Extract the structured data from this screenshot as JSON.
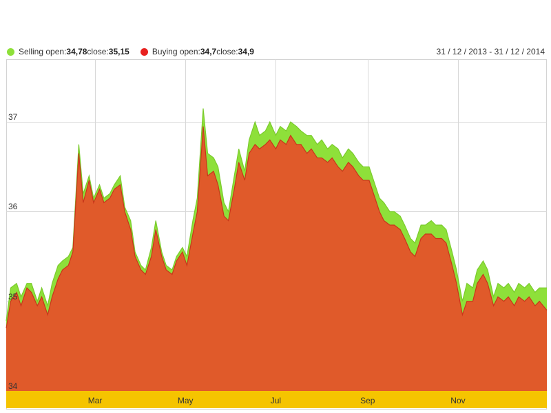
{
  "legend": {
    "selling": {
      "label": "Selling open:",
      "open": "34,78",
      "close_label": " close:",
      "close": "35,15"
    },
    "buying": {
      "label": "Buying open:",
      "open": "34,7",
      "close_label": " close:",
      "close": "34,9"
    }
  },
  "date_range": "31 / 12 / 2013 - 31 / 12 / 2014",
  "colors": {
    "selling": "#8ee03a",
    "buying": "#e05a2a",
    "buying_dot": "#e8211f",
    "axis_band": "#f5c400",
    "grid": "#d8d8d8"
  },
  "chart_data": {
    "type": "area",
    "title": "",
    "xlabel": "",
    "ylabel": "",
    "x_range": [
      "2013-12-31",
      "2014-12-31"
    ],
    "ylim": [
      34,
      37.7
    ],
    "grid": true,
    "legend_position": "top-left",
    "y_ticks": [
      {
        "value": 34,
        "label": "34"
      },
      {
        "value": 35,
        "label": "35"
      },
      {
        "value": 36,
        "label": "36"
      },
      {
        "value": 37,
        "label": "37"
      }
    ],
    "x_ticks": [
      {
        "date": "2014-03-01",
        "label": "Mar"
      },
      {
        "date": "2014-05-01",
        "label": "May"
      },
      {
        "date": "2014-07-01",
        "label": "Jul"
      },
      {
        "date": "2014-09-01",
        "label": "Sep"
      },
      {
        "date": "2014-11-01",
        "label": "Nov"
      }
    ],
    "series": [
      {
        "name": "Selling",
        "color": "#8ee03a",
        "points": [
          [
            "2013-12-31",
            34.78
          ],
          [
            "2014-01-03",
            35.15
          ],
          [
            "2014-01-07",
            35.2
          ],
          [
            "2014-01-10",
            35.05
          ],
          [
            "2014-01-14",
            35.2
          ],
          [
            "2014-01-17",
            35.2
          ],
          [
            "2014-01-21",
            35.0
          ],
          [
            "2014-01-24",
            35.15
          ],
          [
            "2014-01-28",
            34.95
          ],
          [
            "2014-01-31",
            35.2
          ],
          [
            "2014-02-04",
            35.4
          ],
          [
            "2014-02-07",
            35.45
          ],
          [
            "2014-02-11",
            35.5
          ],
          [
            "2014-02-14",
            35.6
          ],
          [
            "2014-02-18",
            36.75
          ],
          [
            "2014-02-21",
            36.2
          ],
          [
            "2014-02-25",
            36.4
          ],
          [
            "2014-02-28",
            36.15
          ],
          [
            "2014-03-04",
            36.3
          ],
          [
            "2014-03-07",
            36.15
          ],
          [
            "2014-03-11",
            36.2
          ],
          [
            "2014-03-14",
            36.3
          ],
          [
            "2014-03-18",
            36.4
          ],
          [
            "2014-03-21",
            36.05
          ],
          [
            "2014-03-25",
            35.9
          ],
          [
            "2014-03-28",
            35.55
          ],
          [
            "2014-04-01",
            35.4
          ],
          [
            "2014-04-04",
            35.35
          ],
          [
            "2014-04-08",
            35.6
          ],
          [
            "2014-04-11",
            35.9
          ],
          [
            "2014-04-15",
            35.55
          ],
          [
            "2014-04-18",
            35.4
          ],
          [
            "2014-04-22",
            35.35
          ],
          [
            "2014-04-25",
            35.5
          ],
          [
            "2014-04-29",
            35.6
          ],
          [
            "2014-05-02",
            35.5
          ],
          [
            "2014-05-06",
            35.9
          ],
          [
            "2014-05-09",
            36.15
          ],
          [
            "2014-05-13",
            37.15
          ],
          [
            "2014-05-16",
            36.65
          ],
          [
            "2014-05-20",
            36.6
          ],
          [
            "2014-05-23",
            36.5
          ],
          [
            "2014-05-27",
            36.1
          ],
          [
            "2014-05-30",
            36.0
          ],
          [
            "2014-06-03",
            36.4
          ],
          [
            "2014-06-06",
            36.7
          ],
          [
            "2014-06-10",
            36.45
          ],
          [
            "2014-06-13",
            36.8
          ],
          [
            "2014-06-17",
            37.0
          ],
          [
            "2014-06-20",
            36.85
          ],
          [
            "2014-06-24",
            36.9
          ],
          [
            "2014-06-27",
            37.0
          ],
          [
            "2014-07-01",
            36.85
          ],
          [
            "2014-07-04",
            36.95
          ],
          [
            "2014-07-08",
            36.9
          ],
          [
            "2014-07-11",
            37.0
          ],
          [
            "2014-07-15",
            36.95
          ],
          [
            "2014-07-18",
            36.9
          ],
          [
            "2014-07-22",
            36.85
          ],
          [
            "2014-07-25",
            36.85
          ],
          [
            "2014-07-29",
            36.75
          ],
          [
            "2014-08-01",
            36.8
          ],
          [
            "2014-08-05",
            36.7
          ],
          [
            "2014-08-08",
            36.75
          ],
          [
            "2014-08-12",
            36.7
          ],
          [
            "2014-08-15",
            36.6
          ],
          [
            "2014-08-19",
            36.7
          ],
          [
            "2014-08-22",
            36.65
          ],
          [
            "2014-08-26",
            36.55
          ],
          [
            "2014-08-29",
            36.5
          ],
          [
            "2014-09-02",
            36.5
          ],
          [
            "2014-09-05",
            36.35
          ],
          [
            "2014-09-09",
            36.15
          ],
          [
            "2014-09-12",
            36.1
          ],
          [
            "2014-09-16",
            36.0
          ],
          [
            "2014-09-19",
            36.0
          ],
          [
            "2014-09-23",
            35.95
          ],
          [
            "2014-09-26",
            35.85
          ],
          [
            "2014-09-30",
            35.7
          ],
          [
            "2014-10-03",
            35.65
          ],
          [
            "2014-10-07",
            35.85
          ],
          [
            "2014-10-10",
            35.85
          ],
          [
            "2014-10-14",
            35.9
          ],
          [
            "2014-10-17",
            35.85
          ],
          [
            "2014-10-21",
            35.85
          ],
          [
            "2014-10-24",
            35.8
          ],
          [
            "2014-10-28",
            35.55
          ],
          [
            "2014-10-31",
            35.35
          ],
          [
            "2014-11-04",
            35.0
          ],
          [
            "2014-11-07",
            35.2
          ],
          [
            "2014-11-11",
            35.15
          ],
          [
            "2014-11-14",
            35.35
          ],
          [
            "2014-11-18",
            35.45
          ],
          [
            "2014-11-21",
            35.35
          ],
          [
            "2014-11-25",
            35.05
          ],
          [
            "2014-11-28",
            35.2
          ],
          [
            "2014-12-02",
            35.15
          ],
          [
            "2014-12-05",
            35.2
          ],
          [
            "2014-12-09",
            35.1
          ],
          [
            "2014-12-12",
            35.2
          ],
          [
            "2014-12-16",
            35.15
          ],
          [
            "2014-12-19",
            35.2
          ],
          [
            "2014-12-23",
            35.1
          ],
          [
            "2014-12-26",
            35.15
          ],
          [
            "2014-12-31",
            35.15
          ]
        ]
      },
      {
        "name": "Buying",
        "color": "#e05a2a",
        "points": [
          [
            "2013-12-31",
            34.7
          ],
          [
            "2014-01-03",
            35.0
          ],
          [
            "2014-01-07",
            35.1
          ],
          [
            "2014-01-10",
            34.95
          ],
          [
            "2014-01-14",
            35.15
          ],
          [
            "2014-01-17",
            35.1
          ],
          [
            "2014-01-21",
            34.95
          ],
          [
            "2014-01-24",
            35.05
          ],
          [
            "2014-01-28",
            34.85
          ],
          [
            "2014-01-31",
            35.05
          ],
          [
            "2014-02-04",
            35.25
          ],
          [
            "2014-02-07",
            35.35
          ],
          [
            "2014-02-11",
            35.4
          ],
          [
            "2014-02-14",
            35.55
          ],
          [
            "2014-02-18",
            36.65
          ],
          [
            "2014-02-21",
            36.1
          ],
          [
            "2014-02-25",
            36.35
          ],
          [
            "2014-02-28",
            36.1
          ],
          [
            "2014-03-04",
            36.25
          ],
          [
            "2014-03-07",
            36.1
          ],
          [
            "2014-03-11",
            36.15
          ],
          [
            "2014-03-14",
            36.25
          ],
          [
            "2014-03-18",
            36.3
          ],
          [
            "2014-03-21",
            36.0
          ],
          [
            "2014-03-25",
            35.8
          ],
          [
            "2014-03-28",
            35.5
          ],
          [
            "2014-04-01",
            35.35
          ],
          [
            "2014-04-04",
            35.3
          ],
          [
            "2014-04-08",
            35.5
          ],
          [
            "2014-04-11",
            35.8
          ],
          [
            "2014-04-15",
            35.5
          ],
          [
            "2014-04-18",
            35.35
          ],
          [
            "2014-04-22",
            35.3
          ],
          [
            "2014-04-25",
            35.45
          ],
          [
            "2014-04-29",
            35.55
          ],
          [
            "2014-05-02",
            35.4
          ],
          [
            "2014-05-06",
            35.75
          ],
          [
            "2014-05-09",
            36.0
          ],
          [
            "2014-05-13",
            36.95
          ],
          [
            "2014-05-16",
            36.4
          ],
          [
            "2014-05-20",
            36.45
          ],
          [
            "2014-05-23",
            36.3
          ],
          [
            "2014-05-27",
            35.95
          ],
          [
            "2014-05-30",
            35.9
          ],
          [
            "2014-06-03",
            36.25
          ],
          [
            "2014-06-06",
            36.55
          ],
          [
            "2014-06-10",
            36.35
          ],
          [
            "2014-06-13",
            36.65
          ],
          [
            "2014-06-17",
            36.75
          ],
          [
            "2014-06-20",
            36.7
          ],
          [
            "2014-06-24",
            36.75
          ],
          [
            "2014-06-27",
            36.8
          ],
          [
            "2014-07-01",
            36.7
          ],
          [
            "2014-07-04",
            36.8
          ],
          [
            "2014-07-08",
            36.75
          ],
          [
            "2014-07-11",
            36.85
          ],
          [
            "2014-07-15",
            36.75
          ],
          [
            "2014-07-18",
            36.75
          ],
          [
            "2014-07-22",
            36.65
          ],
          [
            "2014-07-25",
            36.7
          ],
          [
            "2014-07-29",
            36.6
          ],
          [
            "2014-08-01",
            36.6
          ],
          [
            "2014-08-05",
            36.55
          ],
          [
            "2014-08-08",
            36.6
          ],
          [
            "2014-08-12",
            36.5
          ],
          [
            "2014-08-15",
            36.45
          ],
          [
            "2014-08-19",
            36.55
          ],
          [
            "2014-08-22",
            36.5
          ],
          [
            "2014-08-26",
            36.4
          ],
          [
            "2014-08-29",
            36.35
          ],
          [
            "2014-09-02",
            36.35
          ],
          [
            "2014-09-05",
            36.2
          ],
          [
            "2014-09-09",
            36.0
          ],
          [
            "2014-09-12",
            35.9
          ],
          [
            "2014-09-16",
            35.85
          ],
          [
            "2014-09-19",
            35.85
          ],
          [
            "2014-09-23",
            35.8
          ],
          [
            "2014-09-26",
            35.7
          ],
          [
            "2014-09-30",
            35.55
          ],
          [
            "2014-10-03",
            35.5
          ],
          [
            "2014-10-07",
            35.7
          ],
          [
            "2014-10-10",
            35.75
          ],
          [
            "2014-10-14",
            35.75
          ],
          [
            "2014-10-17",
            35.7
          ],
          [
            "2014-10-21",
            35.7
          ],
          [
            "2014-10-24",
            35.65
          ],
          [
            "2014-10-28",
            35.4
          ],
          [
            "2014-10-31",
            35.2
          ],
          [
            "2014-11-04",
            34.85
          ],
          [
            "2014-11-07",
            35.0
          ],
          [
            "2014-11-11",
            35.0
          ],
          [
            "2014-11-14",
            35.2
          ],
          [
            "2014-11-18",
            35.3
          ],
          [
            "2014-11-21",
            35.2
          ],
          [
            "2014-11-25",
            34.95
          ],
          [
            "2014-11-28",
            35.05
          ],
          [
            "2014-12-02",
            35.0
          ],
          [
            "2014-12-05",
            35.05
          ],
          [
            "2014-12-09",
            34.95
          ],
          [
            "2014-12-12",
            35.05
          ],
          [
            "2014-12-16",
            35.0
          ],
          [
            "2014-12-19",
            35.05
          ],
          [
            "2014-12-23",
            34.95
          ],
          [
            "2014-12-26",
            35.0
          ],
          [
            "2014-12-31",
            34.9
          ]
        ]
      }
    ]
  }
}
